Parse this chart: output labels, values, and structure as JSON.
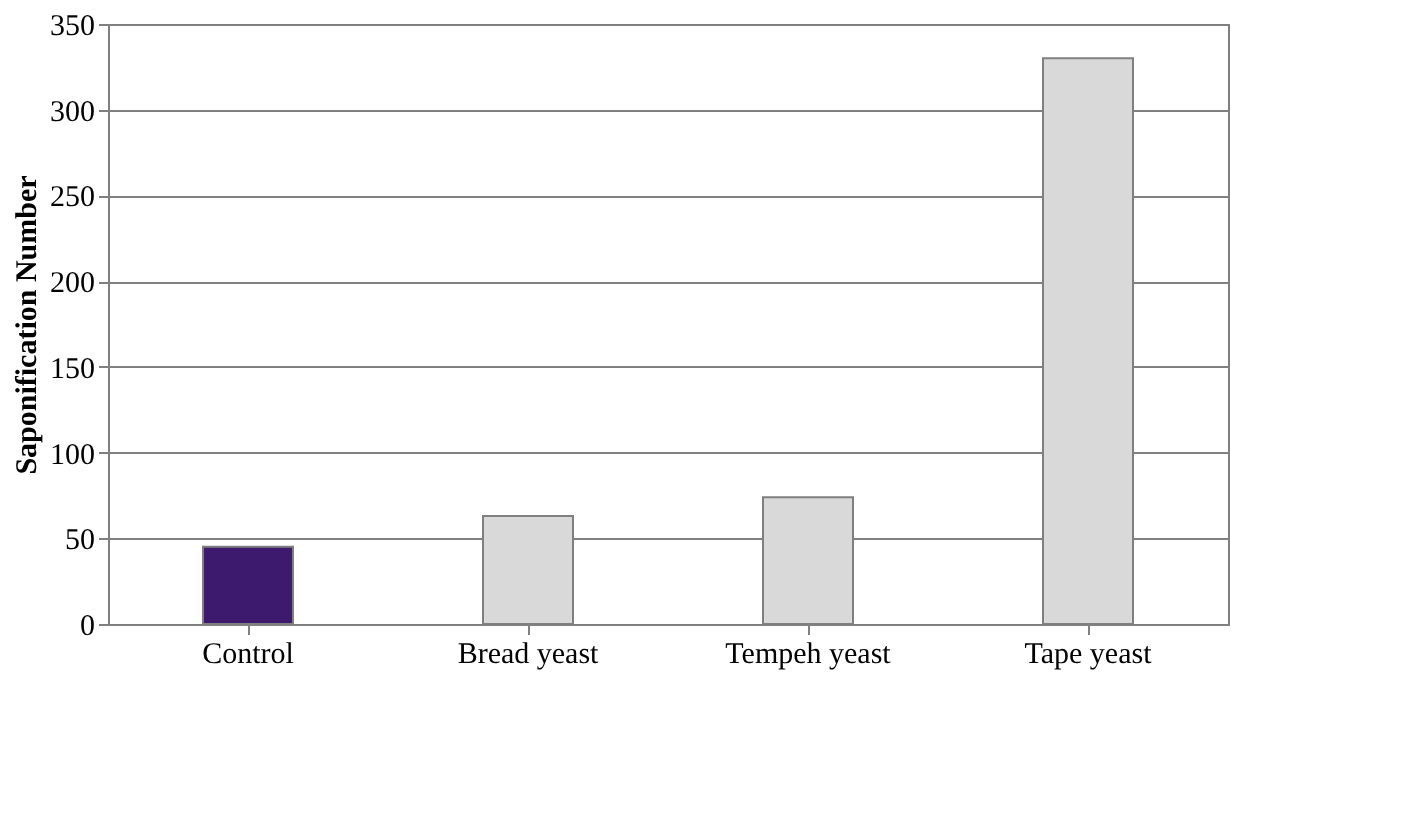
{
  "chart_data": {
    "type": "bar",
    "ylabel": "Saponification Number",
    "categories": [
      "Control",
      "Bread yeast",
      "Tempeh yeast",
      "Tape yeast"
    ],
    "values": [
      45,
      63,
      74,
      330
    ],
    "colors": [
      "#3d1a6e",
      "#d9d9d9",
      "#d9d9d9",
      "#d9d9d9"
    ],
    "ylim": [
      0,
      350
    ],
    "yticks": [
      0,
      50,
      100,
      150,
      200,
      250,
      300,
      350
    ],
    "grid": "y"
  }
}
